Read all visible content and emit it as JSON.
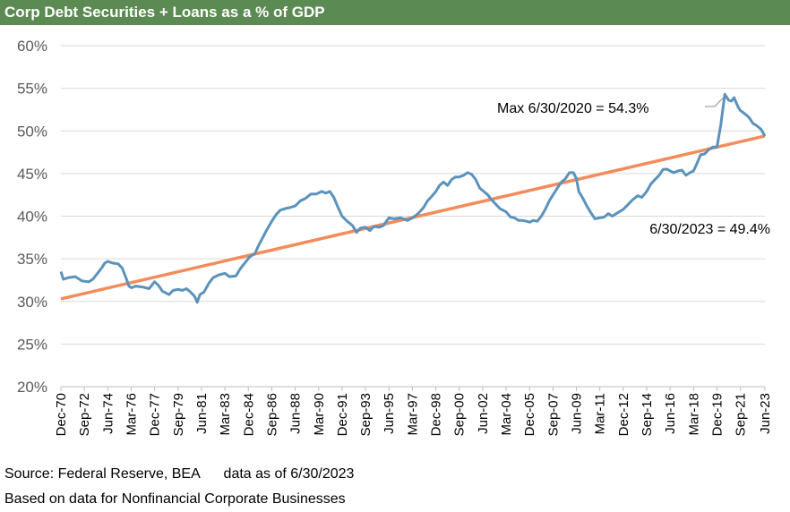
{
  "title": "Corp Debt Securities + Loans as a % of GDP",
  "footer": {
    "source": "Source: Federal Reserve, BEA      data as of 6/30/2023",
    "note": "Based on data for Nonfinancial Corporate Businesses"
  },
  "colors": {
    "title_bg": "#5b8a52",
    "series": "#5b92bb",
    "trend": "#f28c5c",
    "grid": "#d9d9d9"
  },
  "chart_data": {
    "type": "line",
    "ylim": [
      20,
      60
    ],
    "y_ticks": [
      20,
      25,
      30,
      35,
      40,
      45,
      50,
      55,
      60
    ],
    "y_tick_labels": [
      "20%",
      "25%",
      "30%",
      "35%",
      "40%",
      "45%",
      "50%",
      "55%",
      "60%"
    ],
    "xlim": [
      1970.92,
      2023.5
    ],
    "x_ticks": [
      1970.92,
      1972.67,
      1974.42,
      1976.17,
      1977.92,
      1979.67,
      1981.42,
      1983.17,
      1984.92,
      1986.67,
      1988.42,
      1990.17,
      1991.92,
      1993.67,
      1995.42,
      1997.17,
      1998.92,
      2000.67,
      2002.42,
      2004.17,
      2005.92,
      2007.67,
      2009.42,
      2011.17,
      2012.92,
      2014.67,
      2016.42,
      2018.17,
      2019.92,
      2021.67,
      2023.5
    ],
    "x_tick_labels": [
      "Dec-70",
      "Sep-72",
      "Jun-74",
      "Mar-76",
      "Dec-77",
      "Sep-79",
      "Jun-81",
      "Mar-83",
      "Dec-84",
      "Sep-86",
      "Jun-88",
      "Mar-90",
      "Dec-91",
      "Sep-93",
      "Jun-95",
      "Mar-97",
      "Dec-98",
      "Sep-00",
      "Jun-02",
      "Mar-04",
      "Dec-05",
      "Sep-07",
      "Jun-09",
      "Mar-11",
      "Dec-12",
      "Sep-14",
      "Jun-16",
      "Mar-18",
      "Dec-19",
      "Sep-21",
      "Jun-23"
    ],
    "grid": true,
    "series": [
      {
        "values": [
          [
            1970.92,
            33.5
          ],
          [
            1971.1,
            32.6
          ],
          [
            1971.5,
            32.8
          ],
          [
            1972.0,
            32.9
          ],
          [
            1972.5,
            32.4
          ],
          [
            1973.0,
            32.3
          ],
          [
            1973.3,
            32.6
          ],
          [
            1973.7,
            33.4
          ],
          [
            1974.0,
            34.0
          ],
          [
            1974.2,
            34.5
          ],
          [
            1974.42,
            34.7
          ],
          [
            1974.8,
            34.5
          ],
          [
            1975.2,
            34.4
          ],
          [
            1975.5,
            33.9
          ],
          [
            1975.8,
            32.7
          ],
          [
            1976.0,
            31.8
          ],
          [
            1976.2,
            31.6
          ],
          [
            1976.5,
            31.8
          ],
          [
            1977.0,
            31.7
          ],
          [
            1977.5,
            31.5
          ],
          [
            1977.92,
            32.3
          ],
          [
            1978.2,
            31.9
          ],
          [
            1978.5,
            31.2
          ],
          [
            1979.0,
            30.8
          ],
          [
            1979.3,
            31.3
          ],
          [
            1979.67,
            31.4
          ],
          [
            1980.0,
            31.3
          ],
          [
            1980.3,
            31.5
          ],
          [
            1980.6,
            31.1
          ],
          [
            1980.9,
            30.6
          ],
          [
            1981.1,
            29.9
          ],
          [
            1981.3,
            30.8
          ],
          [
            1981.6,
            31.1
          ],
          [
            1982.0,
            32.2
          ],
          [
            1982.3,
            32.8
          ],
          [
            1982.7,
            33.1
          ],
          [
            1983.17,
            33.3
          ],
          [
            1983.5,
            32.9
          ],
          [
            1984.0,
            33.0
          ],
          [
            1984.3,
            33.8
          ],
          [
            1984.7,
            34.6
          ],
          [
            1985.0,
            35.2
          ],
          [
            1985.4,
            35.6
          ],
          [
            1985.7,
            36.6
          ],
          [
            1986.0,
            37.5
          ],
          [
            1986.3,
            38.4
          ],
          [
            1986.67,
            39.4
          ],
          [
            1987.0,
            40.2
          ],
          [
            1987.3,
            40.7
          ],
          [
            1987.7,
            40.9
          ],
          [
            1988.0,
            41.0
          ],
          [
            1988.42,
            41.2
          ],
          [
            1988.8,
            41.8
          ],
          [
            1989.2,
            42.1
          ],
          [
            1989.6,
            42.6
          ],
          [
            1990.0,
            42.6
          ],
          [
            1990.4,
            42.9
          ],
          [
            1990.7,
            42.7
          ],
          [
            1991.0,
            42.9
          ],
          [
            1991.3,
            42.2
          ],
          [
            1991.6,
            41.1
          ],
          [
            1991.92,
            40.0
          ],
          [
            1992.3,
            39.4
          ],
          [
            1992.7,
            38.9
          ],
          [
            1993.0,
            38.1
          ],
          [
            1993.3,
            38.6
          ],
          [
            1993.67,
            38.7
          ],
          [
            1994.0,
            38.3
          ],
          [
            1994.3,
            38.8
          ],
          [
            1994.7,
            38.7
          ],
          [
            1995.0,
            38.9
          ],
          [
            1995.42,
            39.8
          ],
          [
            1995.8,
            39.7
          ],
          [
            1996.3,
            39.8
          ],
          [
            1996.8,
            39.5
          ],
          [
            1997.17,
            39.8
          ],
          [
            1997.6,
            40.3
          ],
          [
            1998.0,
            41.0
          ],
          [
            1998.3,
            41.8
          ],
          [
            1998.6,
            42.3
          ],
          [
            1998.92,
            42.9
          ],
          [
            1999.2,
            43.6
          ],
          [
            1999.5,
            44.0
          ],
          [
            1999.8,
            43.6
          ],
          [
            2000.1,
            44.3
          ],
          [
            2000.4,
            44.6
          ],
          [
            2000.67,
            44.6
          ],
          [
            2001.0,
            44.8
          ],
          [
            2001.3,
            45.1
          ],
          [
            2001.6,
            44.9
          ],
          [
            2001.9,
            44.3
          ],
          [
            2002.2,
            43.3
          ],
          [
            2002.42,
            43.0
          ],
          [
            2002.8,
            42.5
          ],
          [
            2003.1,
            41.9
          ],
          [
            2003.4,
            41.4
          ],
          [
            2003.7,
            40.9
          ],
          [
            2004.17,
            40.5
          ],
          [
            2004.5,
            39.9
          ],
          [
            2004.8,
            39.8
          ],
          [
            2005.1,
            39.5
          ],
          [
            2005.4,
            39.5
          ],
          [
            2005.7,
            39.4
          ],
          [
            2005.92,
            39.3
          ],
          [
            2006.2,
            39.5
          ],
          [
            2006.5,
            39.4
          ],
          [
            2006.8,
            40.0
          ],
          [
            2007.1,
            40.8
          ],
          [
            2007.4,
            41.8
          ],
          [
            2007.67,
            42.5
          ],
          [
            2008.0,
            43.3
          ],
          [
            2008.3,
            44.0
          ],
          [
            2008.6,
            44.4
          ],
          [
            2008.9,
            45.1
          ],
          [
            2009.2,
            45.1
          ],
          [
            2009.42,
            44.4
          ],
          [
            2009.6,
            42.9
          ],
          [
            2009.9,
            42.1
          ],
          [
            2010.2,
            41.2
          ],
          [
            2010.5,
            40.4
          ],
          [
            2010.8,
            39.7
          ],
          [
            2011.17,
            39.8
          ],
          [
            2011.5,
            39.9
          ],
          [
            2011.8,
            40.3
          ],
          [
            2012.1,
            40.0
          ],
          [
            2012.5,
            40.4
          ],
          [
            2012.92,
            40.8
          ],
          [
            2013.3,
            41.4
          ],
          [
            2013.6,
            41.9
          ],
          [
            2014.0,
            42.4
          ],
          [
            2014.3,
            42.2
          ],
          [
            2014.67,
            42.9
          ],
          [
            2015.0,
            43.8
          ],
          [
            2015.3,
            44.3
          ],
          [
            2015.6,
            44.8
          ],
          [
            2015.9,
            45.5
          ],
          [
            2016.2,
            45.5
          ],
          [
            2016.42,
            45.3
          ],
          [
            2016.7,
            45.1
          ],
          [
            2017.0,
            45.3
          ],
          [
            2017.3,
            45.4
          ],
          [
            2017.6,
            44.8
          ],
          [
            2017.9,
            45.1
          ],
          [
            2018.17,
            45.3
          ],
          [
            2018.4,
            46.1
          ],
          [
            2018.7,
            47.2
          ],
          [
            2019.0,
            47.3
          ],
          [
            2019.3,
            47.8
          ],
          [
            2019.6,
            48.1
          ],
          [
            2019.92,
            48.1
          ],
          [
            2020.2,
            50.7
          ],
          [
            2020.5,
            54.3
          ],
          [
            2020.8,
            53.6
          ],
          [
            2021.0,
            53.5
          ],
          [
            2021.2,
            53.9
          ],
          [
            2021.5,
            52.8
          ],
          [
            2021.67,
            52.4
          ],
          [
            2022.0,
            52.0
          ],
          [
            2022.3,
            51.6
          ],
          [
            2022.6,
            50.9
          ],
          [
            2022.9,
            50.6
          ],
          [
            2023.2,
            50.2
          ],
          [
            2023.5,
            49.4
          ]
        ]
      }
    ],
    "trendline": {
      "x": [
        1970.92,
        2023.5
      ],
      "y": [
        30.3,
        49.4
      ]
    },
    "annotations": [
      {
        "text": "Max 6/30/2020 = 54.3%"
      },
      {
        "text": "6/30/2023 = 49.4%"
      }
    ]
  }
}
